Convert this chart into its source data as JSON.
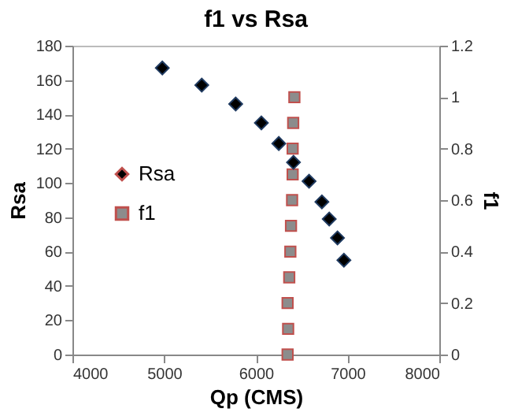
{
  "chart_data": {
    "type": "scatter",
    "title": "f1 vs Rsa",
    "xlabel": "Qp (CMS)",
    "ylabel": "Rsa",
    "y2label": "f1",
    "xlim": [
      4000,
      8000
    ],
    "xticks": [
      4000,
      5000,
      6000,
      7000,
      8000
    ],
    "ylim": [
      0,
      180
    ],
    "yticks": [
      0,
      20,
      40,
      60,
      80,
      100,
      120,
      140,
      160,
      180
    ],
    "y2lim": [
      0,
      1.2
    ],
    "y2ticks": [
      {
        "value": 0,
        "label": "0"
      },
      {
        "value": 0.2,
        "label": "0.2"
      },
      {
        "value": 0.4,
        "label": "0.4"
      },
      {
        "value": 0.6,
        "label": "0.6"
      },
      {
        "value": 0.8,
        "label": "0.8"
      },
      {
        "value": 1,
        "label": "1"
      },
      {
        "value": 1.2,
        "label": "1.2"
      }
    ],
    "grid": false,
    "legend": "left",
    "series": [
      {
        "name": "Rsa",
        "color": "#000000",
        "marker": "diamond",
        "x": [
          4980,
          5410,
          5780,
          6060,
          6250,
          6410,
          6580,
          6720,
          6800,
          6890,
          6960
        ],
        "values": [
          167,
          157,
          146,
          135,
          123,
          112,
          101,
          89,
          79,
          68,
          55
        ]
      },
      {
        "name": "f1",
        "color": "#8c8c8c",
        "marker": "square",
        "axis": "y2",
        "x": [
          6346,
          6352,
          6346,
          6364,
          6376,
          6383,
          6395,
          6401,
          6401,
          6407,
          6420
        ],
        "values": [
          0,
          0.1,
          0.2,
          0.3,
          0.4,
          0.5,
          0.6,
          0.7,
          0.8,
          0.9,
          1.0
        ]
      }
    ]
  }
}
